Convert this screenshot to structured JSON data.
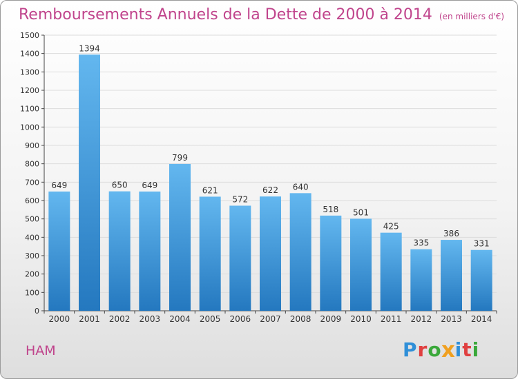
{
  "header": {
    "title": "Remboursements Annuels de la Dette de 2000 à 2014",
    "unit": "(en milliers d'€)"
  },
  "footer": {
    "commune": "HAM",
    "logo_letters": [
      "P",
      "r",
      "o",
      "x",
      "i",
      "t",
      "i"
    ],
    "logo_colors": [
      "#2f8fd8",
      "#e04040",
      "#3aa83a",
      "#f0a020",
      "#2f8fd8",
      "#e04040",
      "#3aa83a"
    ]
  },
  "colors": {
    "bar_top": "#63b7ef",
    "bar_bottom": "#2478bf",
    "title": "#c0448c",
    "grid": "#dcdcdc"
  },
  "chart_data": {
    "type": "bar",
    "title": "Remboursements Annuels de la Dette de 2000 à 2014",
    "subtitle": "(en milliers d'€)",
    "categories": [
      "2000",
      "2001",
      "2002",
      "2003",
      "2004",
      "2005",
      "2006",
      "2007",
      "2008",
      "2009",
      "2010",
      "2011",
      "2012",
      "2013",
      "2014"
    ],
    "values": [
      649,
      1394,
      650,
      649,
      799,
      621,
      572,
      622,
      640,
      518,
      501,
      425,
      335,
      386,
      331
    ],
    "ylim": [
      0,
      1500
    ],
    "ytick_step": 100,
    "grid": true,
    "data_labels": true
  }
}
